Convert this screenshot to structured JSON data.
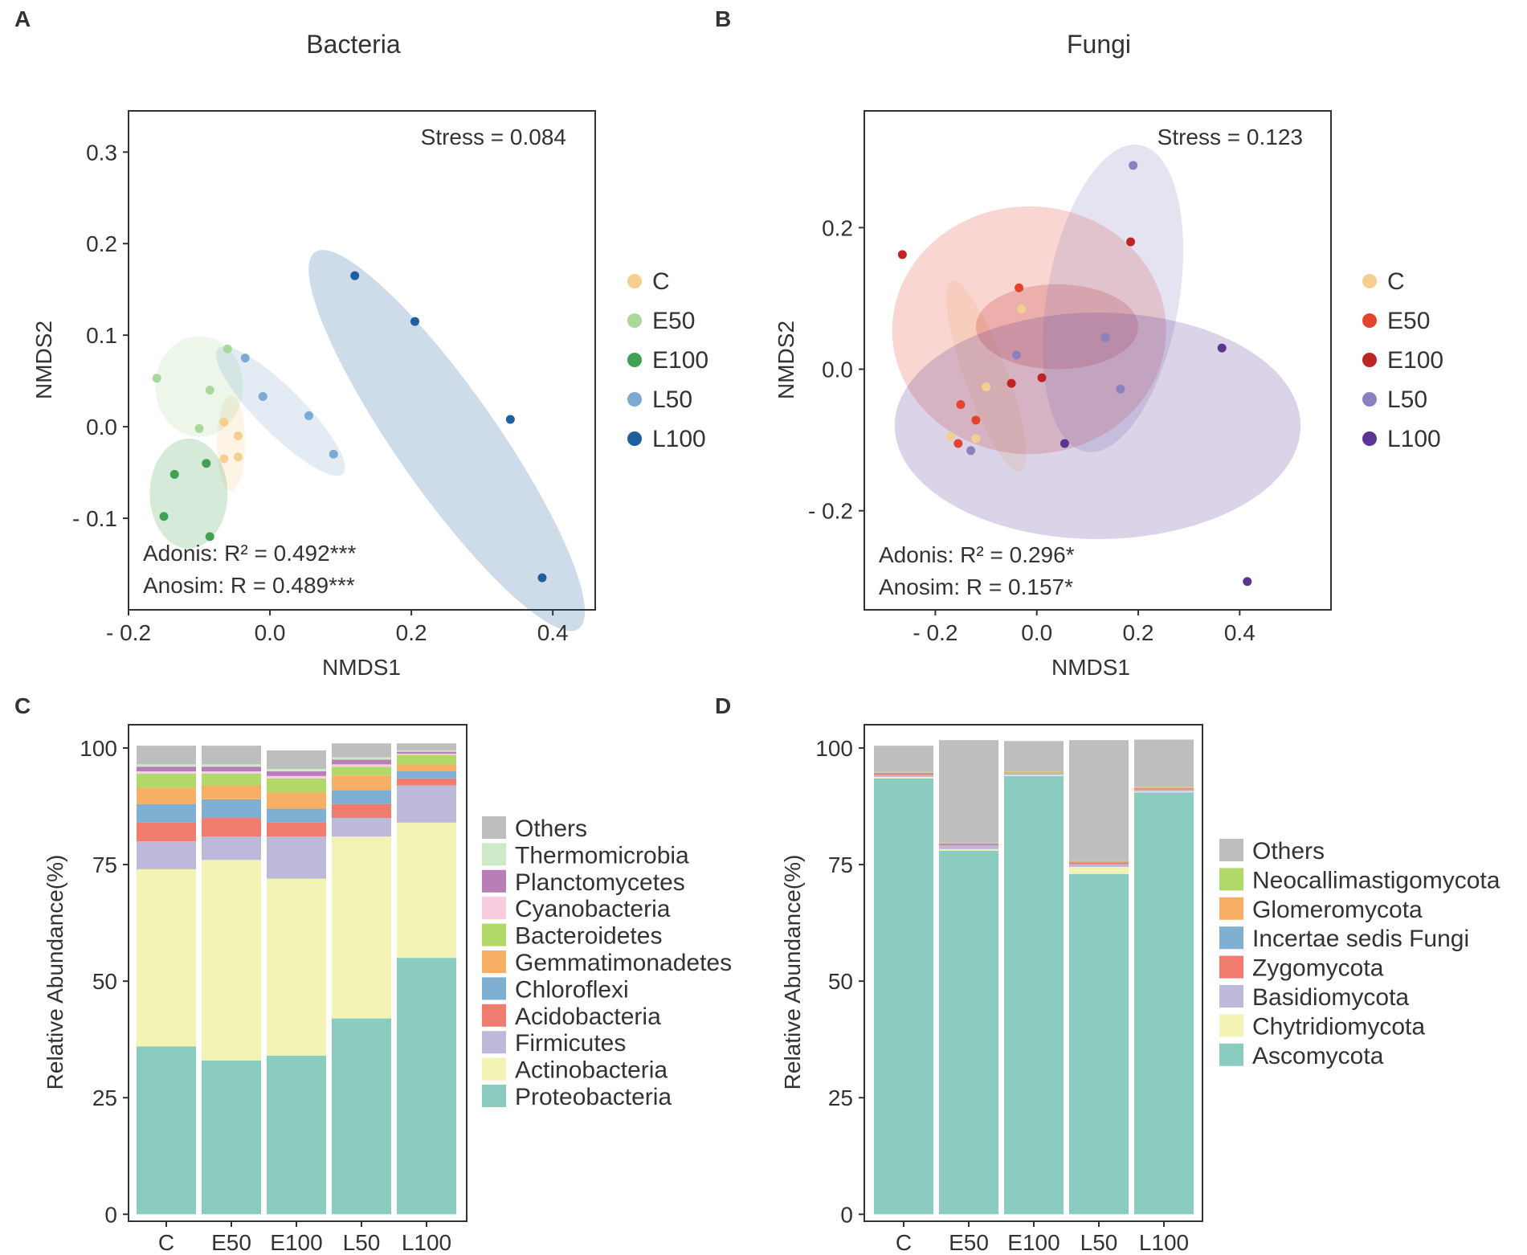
{
  "figure": {
    "panel_letters": [
      "A",
      "B",
      "C",
      "D"
    ]
  },
  "chart_data": [
    {
      "type": "scatter",
      "panel": "A",
      "title": "Bacteria",
      "xlabel": "NMDS1",
      "ylabel": "NMDS2",
      "xlim": [
        -0.2,
        0.46
      ],
      "ylim": [
        -0.2,
        0.345
      ],
      "xticks": [
        -0.2,
        0.0,
        0.2,
        0.4
      ],
      "xtick_labels": [
        "- 0.2",
        "0.0",
        "0.2",
        "0.4"
      ],
      "yticks": [
        -0.1,
        0.0,
        0.1,
        0.2,
        0.3
      ],
      "ytick_labels": [
        "- 0.1",
        "0.0",
        "0.1",
        "0.2",
        "0.3"
      ],
      "annotations": {
        "stress": "Stress = 0.084",
        "adonis": "Adonis: R² = 0.492***",
        "anosim": "Anosim: R = 0.489***"
      },
      "legend_position": "right",
      "series": [
        {
          "name": "C",
          "color": "#F6CF8F",
          "points": [
            [
              -0.065,
              0.005
            ],
            [
              -0.045,
              -0.01
            ],
            [
              -0.065,
              -0.035
            ],
            [
              -0.045,
              -0.033
            ]
          ],
          "ellipse": {
            "center": [
              -0.055,
              -0.018
            ],
            "radii": [
              0.02,
              0.052
            ],
            "angle": 0
          }
        },
        {
          "name": "E50",
          "color": "#A9D89B",
          "points": [
            [
              -0.16,
              0.053
            ],
            [
              -0.085,
              0.04
            ],
            [
              -0.06,
              0.085
            ],
            [
              -0.1,
              -0.002
            ]
          ],
          "ellipse": {
            "center": [
              -0.1,
              0.044
            ],
            "radii": [
              0.062,
              0.055
            ],
            "angle": 0
          }
        },
        {
          "name": "E100",
          "color": "#41A153",
          "points": [
            [
              -0.135,
              -0.052
            ],
            [
              -0.15,
              -0.098
            ],
            [
              -0.085,
              -0.12
            ],
            [
              -0.09,
              -0.04
            ]
          ],
          "ellipse": {
            "center": [
              -0.115,
              -0.073
            ],
            "radii": [
              0.055,
              0.06
            ],
            "angle": 0
          }
        },
        {
          "name": "L50",
          "color": "#7EA9D3",
          "points": [
            [
              -0.035,
              0.075
            ],
            [
              -0.01,
              0.033
            ],
            [
              0.055,
              0.012
            ],
            [
              0.09,
              -0.03
            ]
          ],
          "ellipse": {
            "center": [
              0.015,
              0.017
            ],
            "radii": [
              0.125,
              0.025
            ],
            "angle": 45
          }
        },
        {
          "name": "L100",
          "color": "#1F5FA0",
          "points": [
            [
              0.12,
              0.165
            ],
            [
              0.205,
              0.115
            ],
            [
              0.34,
              0.008
            ],
            [
              0.385,
              -0.165
            ]
          ],
          "ellipse": {
            "center": [
              0.25,
              -0.015
            ],
            "radii": [
              0.325,
              0.055
            ],
            "angle": 55
          }
        }
      ]
    },
    {
      "type": "scatter",
      "panel": "B",
      "title": "Fungi",
      "xlabel": "NMDS1",
      "ylabel": "NMDS2",
      "xlim": [
        -0.34,
        0.58
      ],
      "ylim": [
        -0.34,
        0.365
      ],
      "xticks": [
        -0.2,
        0.0,
        0.2,
        0.4
      ],
      "xtick_labels": [
        "- 0.2",
        "0.0",
        "0.2",
        "0.4"
      ],
      "yticks": [
        -0.2,
        0.0,
        0.2
      ],
      "ytick_labels": [
        "- 0.2",
        "0.0",
        "0.2"
      ],
      "annotations": {
        "stress": "Stress = 0.123",
        "adonis": "Adonis: R² = 0.296*",
        "anosim": "Anosim: R = 0.157*"
      },
      "legend_position": "right",
      "series": [
        {
          "name": "C",
          "color": "#F6CF8F",
          "points": [
            [
              -0.03,
              0.085
            ],
            [
              -0.1,
              -0.025
            ],
            [
              -0.17,
              -0.095
            ],
            [
              -0.12,
              -0.098
            ]
          ],
          "ellipse": {
            "center": [
              -0.1,
              -0.01
            ],
            "radii": [
              0.2,
              0.03
            ],
            "angle": 70
          }
        },
        {
          "name": "E50",
          "color": "#E5432F",
          "points": [
            [
              -0.035,
              0.115
            ],
            [
              -0.15,
              -0.05
            ],
            [
              -0.12,
              -0.072
            ],
            [
              -0.155,
              -0.105
            ]
          ],
          "ellipse": {
            "center": [
              -0.015,
              0.055
            ],
            "radii": [
              0.27,
              0.175
            ],
            "angle": 0
          }
        },
        {
          "name": "E100",
          "color": "#BE2424",
          "points": [
            [
              -0.265,
              0.162
            ],
            [
              0.185,
              0.18
            ],
            [
              0.01,
              -0.012
            ],
            [
              -0.05,
              -0.02
            ]
          ],
          "ellipse": {
            "center": [
              0.04,
              0.06
            ],
            "radii": [
              0.16,
              0.06
            ],
            "angle": 0
          }
        },
        {
          "name": "L50",
          "color": "#8A81C0",
          "points": [
            [
              0.19,
              0.288
            ],
            [
              0.135,
              0.045
            ],
            [
              0.165,
              -0.028
            ],
            [
              -0.04,
              0.02
            ],
            [
              -0.13,
              -0.115
            ]
          ],
          "ellipse": {
            "center": [
              0.15,
              0.1
            ],
            "radii": [
              0.13,
              0.22
            ],
            "angle": 10
          }
        },
        {
          "name": "L100",
          "color": "#5A3593",
          "points": [
            [
              0.365,
              0.03
            ],
            [
              0.415,
              -0.3
            ],
            [
              0.055,
              -0.105
            ]
          ],
          "ellipse": {
            "center": [
              0.12,
              -0.08
            ],
            "radii": [
              0.4,
              0.16
            ],
            "angle": 0
          }
        }
      ]
    },
    {
      "type": "bar",
      "stacked": true,
      "panel": "C",
      "title": "",
      "xlabel": "",
      "ylabel": "Relative Abundance(%)",
      "ylim": [
        0,
        100
      ],
      "yticks": [
        0,
        25,
        50,
        75,
        100
      ],
      "ytick_labels": [
        "0",
        "25",
        "50",
        "75",
        "100"
      ],
      "categories": [
        "C",
        "E50",
        "E100",
        "L50",
        "L100"
      ],
      "legend_position": "right",
      "series": [
        {
          "name": "Proteobacteria",
          "color": "#8ACDC0",
          "values": [
            36,
            33,
            34,
            42,
            55
          ]
        },
        {
          "name": "Actinobacteria",
          "color": "#F4F3B6",
          "values": [
            38,
            43,
            38,
            39,
            29
          ]
        },
        {
          "name": "Firmicutes",
          "color": "#BDB9DA",
          "values": [
            6,
            5,
            9,
            4,
            8
          ]
        },
        {
          "name": "Acidobacteria",
          "color": "#F07C6F",
          "values": [
            4,
            4,
            3,
            3,
            1.5
          ]
        },
        {
          "name": "Chloroflexi",
          "color": "#7FB0D3",
          "values": [
            4,
            4,
            3,
            3,
            1.5
          ]
        },
        {
          "name": "Gemmatimonadetes",
          "color": "#F6AF64",
          "values": [
            3.5,
            3,
            3.5,
            3,
            1.5
          ]
        },
        {
          "name": "Bacteroidetes",
          "color": "#B0D96A",
          "values": [
            3,
            2.5,
            3,
            2,
            2
          ]
        },
        {
          "name": "Cyanobacteria",
          "color": "#F8CDE1",
          "values": [
            0.5,
            0.5,
            0.5,
            0.5,
            0.3
          ]
        },
        {
          "name": "Planctomycetes",
          "color": "#B77EB8",
          "values": [
            1,
            1,
            1,
            1,
            0.4
          ]
        },
        {
          "name": "Thermomicrobia",
          "color": "#CDE9C8",
          "values": [
            0.5,
            0.5,
            0.5,
            0.5,
            0.3
          ]
        },
        {
          "name": "Others",
          "color": "#BFBEBE",
          "values": [
            4,
            4,
            4,
            3,
            1.5
          ]
        }
      ]
    },
    {
      "type": "bar",
      "stacked": true,
      "panel": "D",
      "title": "",
      "xlabel": "",
      "ylabel": "Relative Abundance(%)",
      "ylim": [
        0,
        100
      ],
      "yticks": [
        0,
        25,
        50,
        75,
        100
      ],
      "ytick_labels": [
        "0",
        "25",
        "50",
        "75",
        "100"
      ],
      "categories": [
        "C",
        "E50",
        "E100",
        "L50",
        "L100"
      ],
      "legend_position": "right",
      "series": [
        {
          "name": "Ascomycota",
          "color": "#8ACDC0",
          "values": [
            93.5,
            78,
            94,
            73,
            90.5
          ]
        },
        {
          "name": "Chytridiomycota",
          "color": "#F4F3B6",
          "values": [
            0.3,
            0.3,
            0.2,
            1.5,
            0.2
          ]
        },
        {
          "name": "Basidiomycota",
          "color": "#BDB9DA",
          "values": [
            0.4,
            0.8,
            0.4,
            0.6,
            0.4
          ]
        },
        {
          "name": "Zygomycota",
          "color": "#F07C6F",
          "values": [
            0.4,
            0.3,
            0.1,
            0.4,
            0.2
          ]
        },
        {
          "name": "Incertae sedis Fungi",
          "color": "#7FB0D3",
          "values": [
            0.1,
            0.1,
            0.1,
            0.1,
            0.1
          ]
        },
        {
          "name": "Glomeromycota",
          "color": "#F6AF64",
          "values": [
            0.1,
            0.1,
            0.1,
            0.2,
            0.1
          ]
        },
        {
          "name": "Neocallimastigomycota",
          "color": "#B0D96A",
          "values": [
            0.1,
            0.1,
            0.1,
            0.1,
            0.1
          ]
        },
        {
          "name": "Others",
          "color": "#BFBEBE",
          "values": [
            5.6,
            22,
            6.5,
            25.8,
            10.2
          ]
        }
      ]
    }
  ]
}
